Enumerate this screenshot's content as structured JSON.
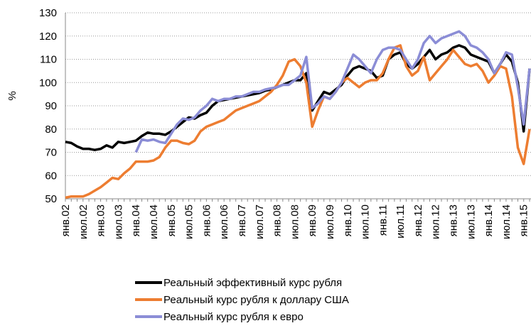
{
  "chart_data": {
    "type": "line",
    "y_label": "%",
    "categories": [
      "янв.02",
      null,
      null,
      "июл.02",
      null,
      null,
      "янв.03",
      null,
      null,
      "июл.03",
      null,
      null,
      "янв.04",
      null,
      null,
      "июл.04",
      null,
      null,
      "янв.05",
      null,
      null,
      "июл.05",
      null,
      null,
      "янв.06",
      null,
      null,
      "июл.06",
      null,
      null,
      "янв.07",
      null,
      null,
      "июл.07",
      null,
      null,
      "янв.08",
      null,
      null,
      "июл.08",
      null,
      null,
      "янв.09",
      null,
      null,
      "июл.09",
      null,
      null,
      "янв.10",
      null,
      null,
      "июл.10",
      null,
      null,
      "янв.11",
      null,
      null,
      "июл.11",
      null,
      null,
      "янв.12",
      null,
      null,
      "июл.12",
      null,
      null,
      "янв.13",
      null,
      null,
      "июл.13",
      null,
      null,
      "янв.14",
      null,
      null,
      "июл.14",
      null,
      null,
      "янв.15",
      null
    ],
    "series": [
      {
        "name": "Реальный эффективный курс рубля",
        "color": "#000000",
        "values": [
          74.5,
          74,
          72.5,
          71.5,
          71.5,
          71,
          71.5,
          73,
          72,
          74.5,
          74,
          74.5,
          75,
          77,
          78.5,
          78,
          78,
          77.5,
          79,
          81,
          83,
          85,
          84.5,
          86,
          87,
          90,
          92,
          92.5,
          93,
          93.5,
          94,
          94.5,
          95,
          95.5,
          96.5,
          97,
          98,
          99,
          100,
          101,
          101,
          104,
          88,
          92,
          96,
          95,
          97,
          99,
          103,
          106,
          107,
          106,
          105,
          102,
          103,
          110,
          112,
          113,
          108,
          106,
          108,
          111,
          114,
          110,
          112,
          113,
          115,
          116,
          115,
          112,
          111,
          110,
          109,
          104,
          108,
          112,
          109,
          100,
          79,
          106
        ]
      },
      {
        "name": "Реальный курс рубля к доллару США",
        "color": "#ED7D31",
        "values": [
          50.5,
          51,
          51,
          51,
          52,
          53.5,
          55,
          57,
          59,
          58.5,
          61,
          63,
          66,
          66,
          66,
          66.5,
          68,
          72,
          75,
          75,
          74,
          73.5,
          75,
          79,
          81,
          82,
          83,
          84,
          86,
          88,
          89,
          90,
          91,
          92,
          94,
          96,
          99,
          103,
          109,
          110,
          107,
          100,
          81,
          88,
          94,
          93,
          96,
          100,
          102,
          100,
          98,
          100,
          101,
          101,
          104,
          110,
          115,
          116,
          107,
          103,
          105,
          111,
          101,
          104,
          107,
          110,
          114,
          111,
          108,
          107,
          108,
          105,
          100,
          103,
          107,
          106,
          94,
          72,
          65,
          80
        ]
      },
      {
        "name": "Реальный курс рубля к евро",
        "color": "#8B8DD6",
        "values": [
          null,
          null,
          null,
          null,
          null,
          null,
          null,
          null,
          null,
          null,
          null,
          null,
          70,
          75.5,
          75,
          75.5,
          74.5,
          74,
          78,
          82,
          84.5,
          84,
          85,
          88,
          90,
          93,
          92,
          93,
          93,
          94,
          94,
          95,
          96,
          96,
          97,
          97.5,
          98,
          99,
          99,
          101,
          103,
          111,
          89,
          91,
          94,
          93,
          96,
          100,
          106,
          112,
          110,
          107,
          104,
          110,
          114,
          115,
          115,
          114,
          110,
          106,
          110,
          117,
          120,
          117,
          119,
          120,
          121,
          122,
          120,
          116,
          115,
          113,
          110,
          104,
          108,
          113,
          112,
          98,
          82,
          106
        ]
      }
    ],
    "ylim": [
      50,
      130
    ],
    "yticks": [
      50,
      60,
      70,
      80,
      90,
      100,
      110,
      120,
      130
    ],
    "grid": true
  }
}
